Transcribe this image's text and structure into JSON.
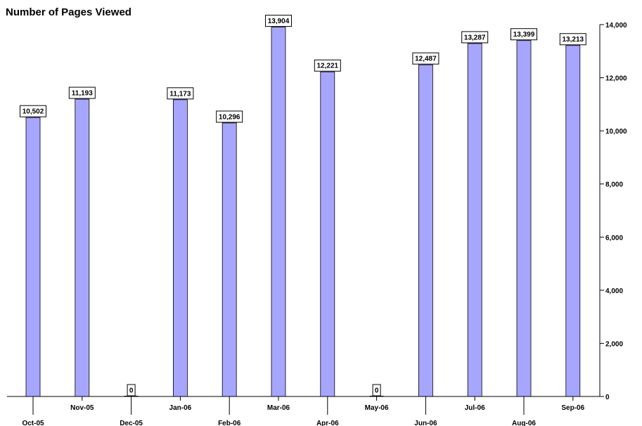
{
  "chart_data": {
    "type": "bar",
    "title": "Number of Pages Viewed",
    "categories": [
      "Oct-05",
      "Nov-05",
      "Dec-05",
      "Jan-06",
      "Feb-06",
      "Mar-06",
      "Apr-06",
      "May-06",
      "Jun-06",
      "Jul-06",
      "Aug-06",
      "Sep-06"
    ],
    "values": [
      10502,
      11193,
      0,
      11173,
      10296,
      13904,
      12221,
      0,
      12487,
      13287,
      13399,
      13213
    ],
    "value_labels": [
      "10,502",
      "11,193",
      "0",
      "11,173",
      "10,296",
      "13,904",
      "12,221",
      "0",
      "12,487",
      "13,287",
      "13,399",
      "13,213"
    ],
    "ylim": [
      0,
      14000
    ],
    "yticks": [
      0,
      2000,
      4000,
      6000,
      8000,
      10000,
      12000,
      14000
    ],
    "ytick_labels": [
      "0",
      "2,000",
      "4,000",
      "6,000",
      "8,000",
      "10,000",
      "12,000",
      "14,000"
    ],
    "y_axis_position": "right",
    "grid": false,
    "legend": "none",
    "bar_color": "#a6a6ff"
  }
}
